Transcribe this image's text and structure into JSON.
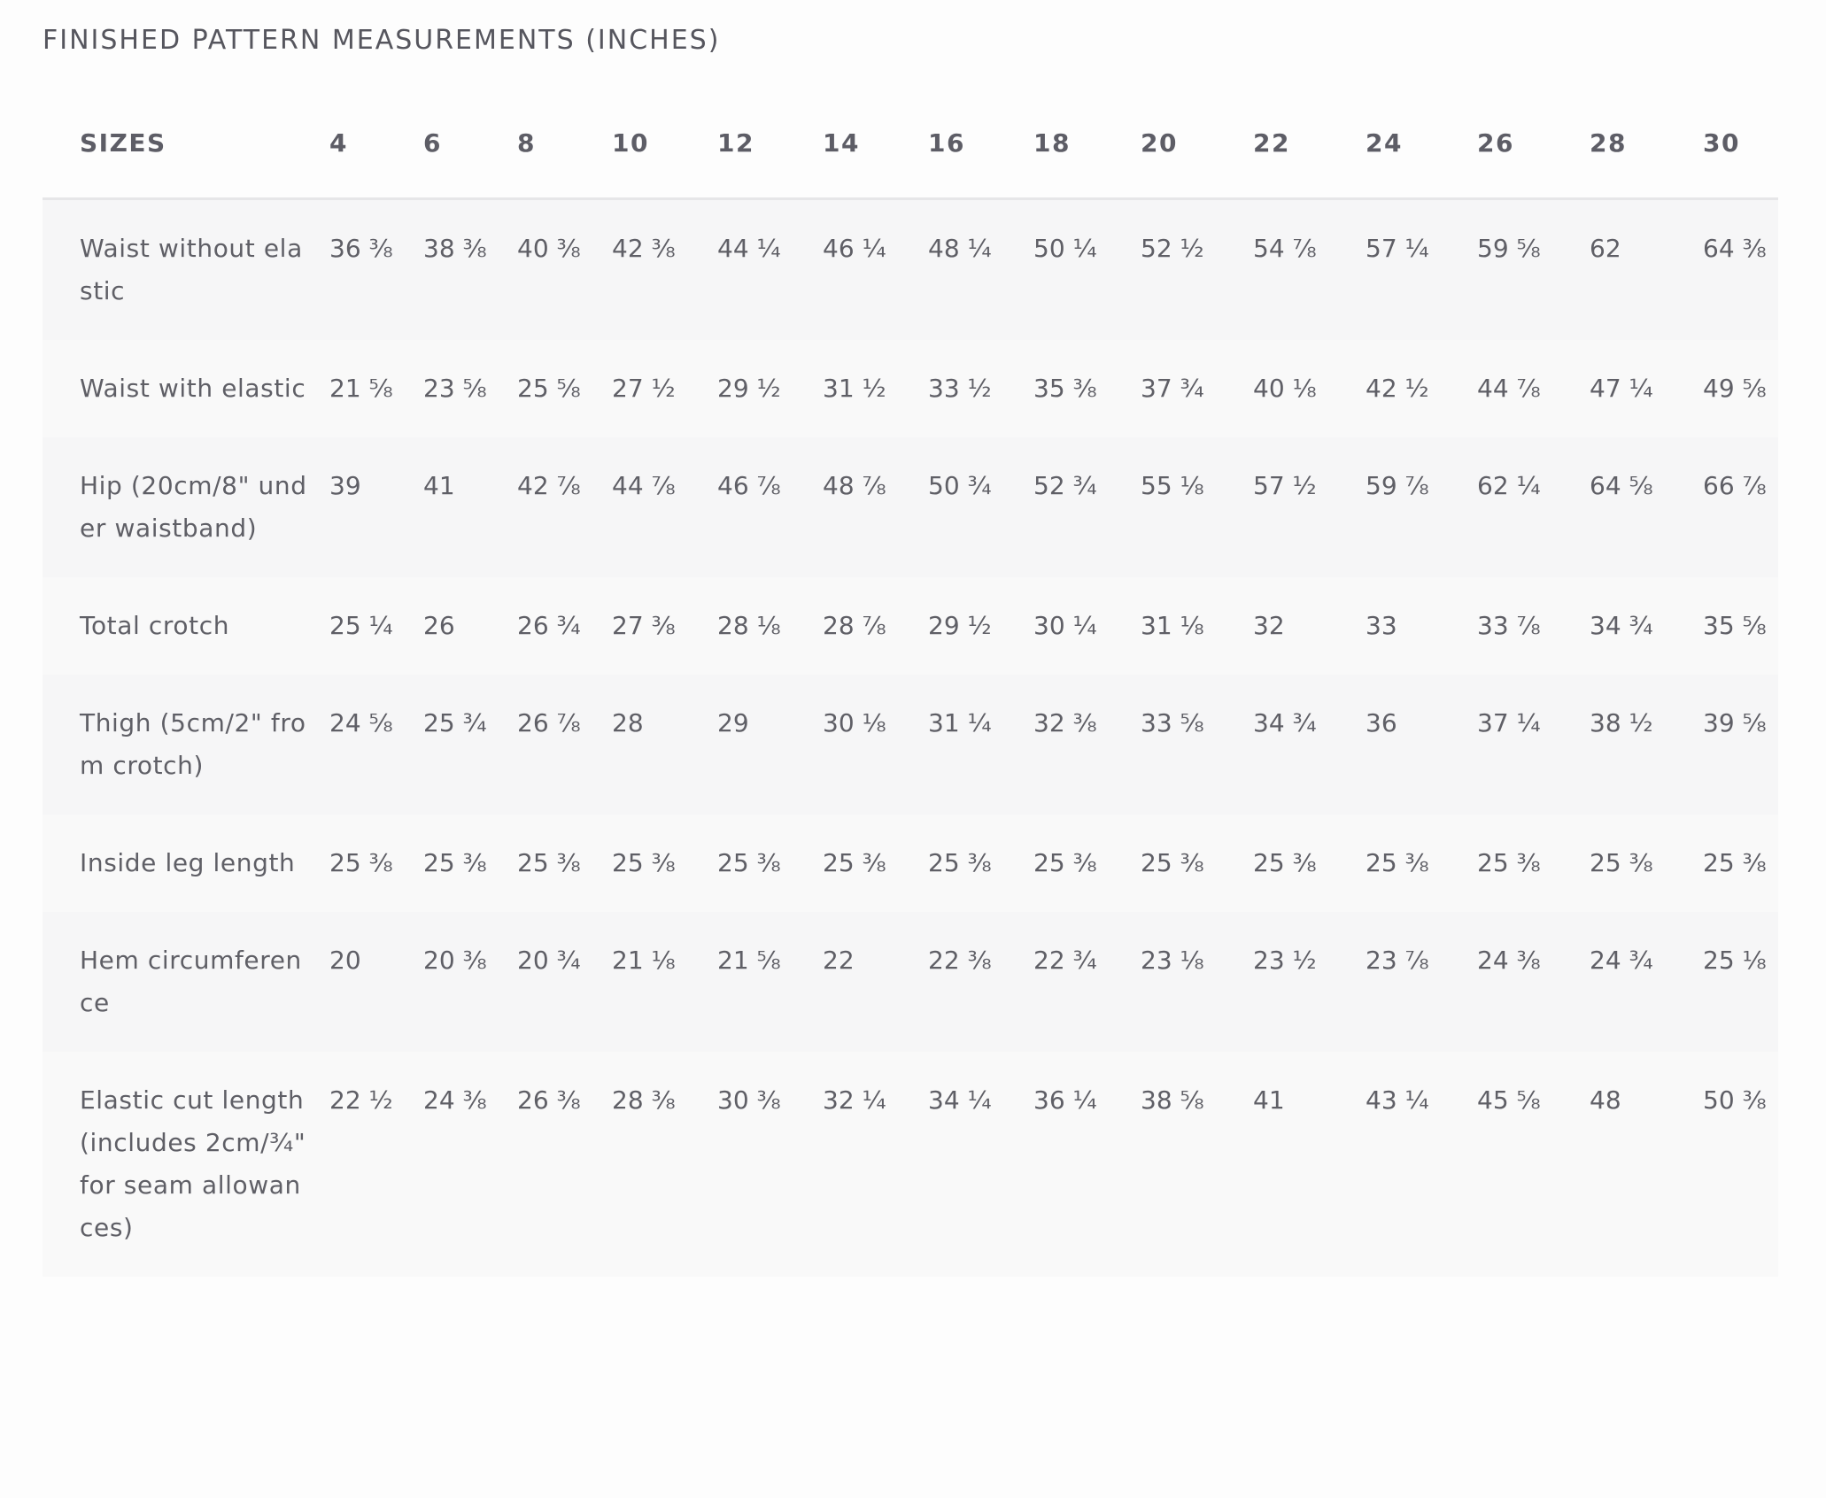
{
  "title": "FINISHED PATTERN MEASUREMENTS (INCHES)",
  "header": {
    "label": "SIZES",
    "sizes": [
      "4",
      "6",
      "8",
      "10",
      "12",
      "14",
      "16",
      "18",
      "20",
      "22",
      "24",
      "26",
      "28",
      "30"
    ]
  },
  "rows": [
    {
      "label": "Waist without elastic",
      "values": [
        "36 ⅜",
        "38 ⅜",
        "40 ⅜",
        "42 ⅜",
        "44 ¼",
        "46 ¼",
        "48 ¼",
        "50 ¼",
        "52 ½",
        "54 ⅞",
        "57 ¼",
        "59 ⅝",
        "62",
        "64 ⅜"
      ]
    },
    {
      "label": "Waist with elastic",
      "values": [
        "21 ⅝",
        "23 ⅝",
        "25 ⅝",
        "27 ½",
        "29 ½",
        "31 ½",
        "33 ½",
        "35 ⅜",
        "37 ¾",
        "40 ⅛",
        "42 ½",
        "44 ⅞",
        "47 ¼",
        "49 ⅝"
      ]
    },
    {
      "label": "Hip (20cm/8\" under waistband)",
      "values": [
        "39",
        "41",
        "42 ⅞",
        "44 ⅞",
        "46 ⅞",
        "48 ⅞",
        "50 ¾",
        "52 ¾",
        "55 ⅛",
        "57 ½",
        "59 ⅞",
        "62 ¼",
        "64 ⅝",
        "66 ⅞"
      ]
    },
    {
      "label": "Total crotch",
      "values": [
        "25 ¼",
        "26",
        "26 ¾",
        "27 ⅜",
        "28 ⅛",
        "28 ⅞",
        "29 ½",
        "30 ¼",
        "31 ⅛",
        "32",
        "33",
        "33 ⅞",
        "34 ¾",
        "35 ⅝"
      ]
    },
    {
      "label": "Thigh (5cm/2\" from crotch)",
      "values": [
        "24 ⅝",
        "25 ¾",
        "26 ⅞",
        "28",
        "29",
        "30 ⅛",
        "31 ¼",
        "32 ⅜",
        "33 ⅝",
        "34 ¾",
        "36",
        "37 ¼",
        "38 ½",
        "39 ⅝"
      ]
    },
    {
      "label": "Inside leg length",
      "values": [
        "25 ⅜",
        "25 ⅜",
        "25 ⅜",
        "25 ⅜",
        "25 ⅜",
        "25 ⅜",
        "25 ⅜",
        "25 ⅜",
        "25 ⅜",
        "25 ⅜",
        "25 ⅜",
        "25 ⅜",
        "25 ⅜",
        "25 ⅜"
      ]
    },
    {
      "label": "Hem circumference",
      "values": [
        "20",
        "20 ⅜",
        "20 ¾",
        "21 ⅛",
        "21 ⅝",
        "22",
        "22 ⅜",
        "22 ¾",
        "23 ⅛",
        "23 ½",
        "23 ⅞",
        "24 ⅜",
        "24 ¾",
        "25 ⅛"
      ]
    },
    {
      "label": "Elastic cut length (includes 2cm/¾\" for seam allowances)",
      "values": [
        "22 ½",
        "24 ⅜",
        "26 ⅜",
        "28 ⅜",
        "30 ⅜",
        "32 ¼",
        "34 ¼",
        "36 ¼",
        "38 ⅝",
        "41",
        "43 ¼",
        "45 ⅝",
        "48",
        "50 ⅜"
      ]
    }
  ]
}
